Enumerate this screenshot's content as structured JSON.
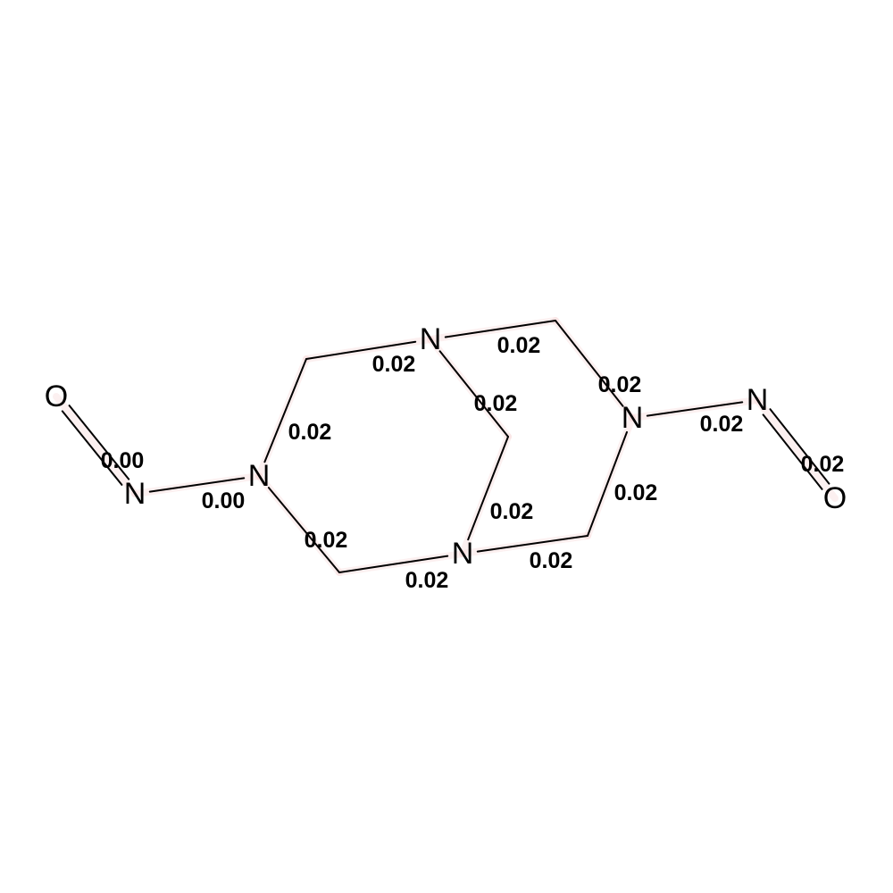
{
  "atoms": [
    {
      "id": "O1",
      "symbol": "O"
    },
    {
      "id": "N1",
      "symbol": "N"
    },
    {
      "id": "N2",
      "symbol": "N"
    },
    {
      "id": "N3",
      "symbol": "N"
    },
    {
      "id": "N4",
      "symbol": "N"
    },
    {
      "id": "N5",
      "symbol": "N"
    },
    {
      "id": "N6",
      "symbol": "N"
    },
    {
      "id": "O2",
      "symbol": "O"
    }
  ],
  "bond_labels": [
    {
      "bond": "O1=N1",
      "value": "0.00"
    },
    {
      "bond": "N1-N2",
      "value": "0.00"
    },
    {
      "bond": "N2-C1",
      "value": "0.02"
    },
    {
      "bond": "C1-N3",
      "value": "0.02"
    },
    {
      "bond": "N3-C2",
      "value": "0.02"
    },
    {
      "bond": "C2-N5",
      "value": "0.02"
    },
    {
      "bond": "N3-C3",
      "value": "0.02"
    },
    {
      "bond": "C3-N4",
      "value": "0.02"
    },
    {
      "bond": "N2-C4",
      "value": "0.02"
    },
    {
      "bond": "C4-N4",
      "value": "0.02"
    },
    {
      "bond": "N4-C5",
      "value": "0.02"
    },
    {
      "bond": "C5-N5",
      "value": "0.02"
    },
    {
      "bond": "N5-N6",
      "value": "0.02"
    },
    {
      "bond": "N6=O2",
      "value": "0.02"
    }
  ]
}
